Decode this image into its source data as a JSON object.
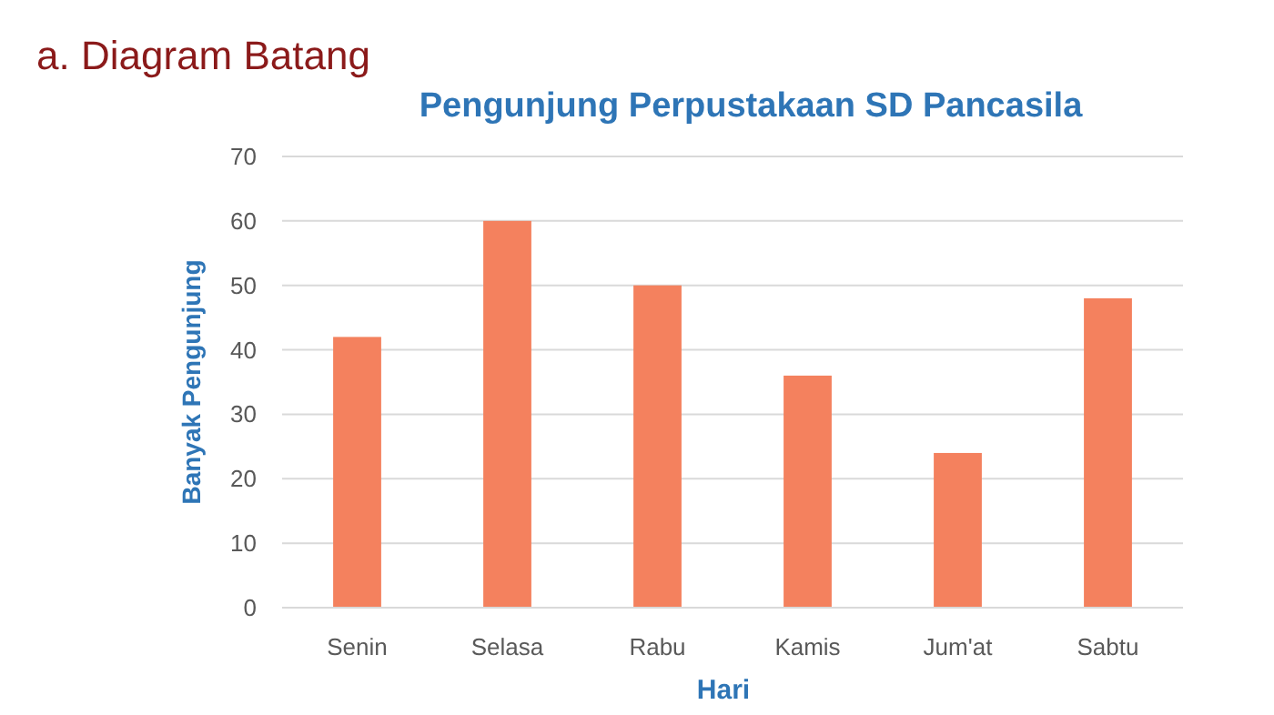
{
  "chart_data": {
    "type": "bar",
    "title": "Pengunjung Perpustakaan SD Pancasila",
    "xlabel": "Hari",
    "ylabel": "Banyak Pengunjung",
    "annotations": [
      "a.    Diagram Batang"
    ],
    "categories": [
      "Senin",
      "Selasa",
      "Rabu",
      "Kamis",
      "Jum'at",
      "Sabtu"
    ],
    "values": [
      42,
      60,
      50,
      36,
      24,
      48
    ],
    "color": "#f4815e",
    "ylim": [
      0,
      70
    ],
    "yticks": [
      0,
      10,
      20,
      30,
      40,
      50,
      60,
      70
    ],
    "grid": "y"
  }
}
